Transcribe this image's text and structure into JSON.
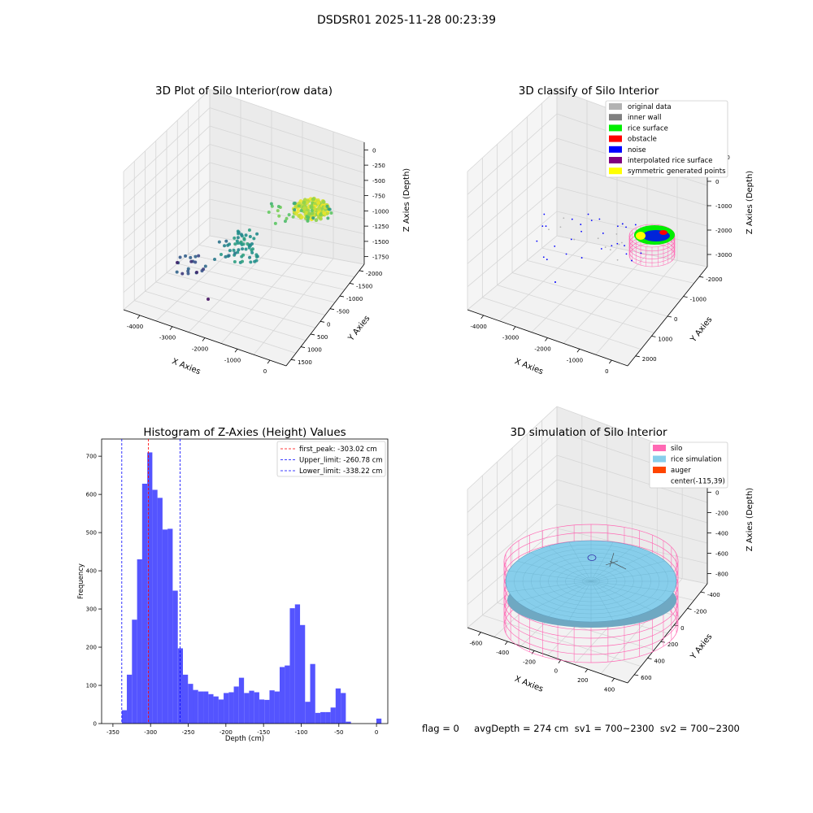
{
  "figure": {
    "suptitle": "DSDSR01 2025-11-28 00:23:39",
    "status_line": "flag = 0     avgDepth = 274 cm  sv1 = 700~2300  sv2 = 700~2300"
  },
  "colors": {
    "original": "#b2b2b2",
    "inner_wall": "#808080",
    "rice_surface": "#00ee00",
    "obstacle": "#ff0000",
    "noise": "#0000ff",
    "interpolated": "#800080",
    "symmetric": "#ffff00",
    "silo": "#ff69b4",
    "rice_sim": "#87ceeb",
    "auger": "#ff4500",
    "hist_bar": "#4b4bff"
  },
  "chart_data": [
    {
      "type": "scatter3d",
      "title": "3D Plot of Silo Interior(row data)",
      "xlabel": "X Axies",
      "ylabel": "Y Axies",
      "zlabel": "Z Axies (Depth)",
      "xticks": [
        "-4000",
        "-3000",
        "-2000",
        "-1000",
        "0"
      ],
      "yticks": [
        "1500",
        "1000",
        "500",
        "0",
        "-500",
        "-1000",
        "-1500",
        "-2000"
      ],
      "zticks": [
        "0",
        "-250",
        "-500",
        "-750",
        "-1000",
        "-1250",
        "-1500",
        "-1750"
      ],
      "colormap": "viridis"
    },
    {
      "type": "scatter3d",
      "title": "3D classify of Silo Interior",
      "xlabel": "X Axies",
      "ylabel": "Y Axies",
      "zlabel": "Z Axies (Depth)",
      "xticks": [
        "-4000",
        "-3000",
        "-2000",
        "-1000",
        "0"
      ],
      "yticks": [
        "2000",
        "1000",
        "0",
        "-1000",
        "-2000"
      ],
      "zticks": [
        "1000",
        "0",
        "-1000",
        "-2000",
        "-3000"
      ],
      "legend": [
        "original data",
        "inner wall",
        "rice surface",
        "obstacle",
        "noise",
        "interpolated rice surface",
        "symmetric generated points"
      ],
      "legend_position": "top-right"
    },
    {
      "type": "bar",
      "title": "Histogram of Z-Axies (Height) Values",
      "xlabel": "Depth (cm)",
      "ylabel": "Frequency",
      "xlim": [
        -365,
        15
      ],
      "ylim": [
        0,
        745
      ],
      "xticks": [
        -350,
        -300,
        -250,
        -200,
        -150,
        -100,
        -50,
        0
      ],
      "yticks": [
        0,
        100,
        200,
        300,
        400,
        500,
        600,
        700
      ],
      "bin_width": 6.76,
      "bin_starts": [
        -338.2,
        -331.5,
        -324.7,
        -317.9,
        -311.2,
        -304.4,
        -297.6,
        -290.9,
        -284.1,
        -277.4,
        -270.6,
        -263.8,
        -257.1,
        -250.3,
        -243.6,
        -236.8,
        -230.0,
        -223.3,
        -216.5,
        -209.8,
        -203.0,
        -196.2,
        -189.5,
        -182.7,
        -175.9,
        -169.2,
        -162.4,
        -155.7,
        -148.9,
        -142.1,
        -135.4,
        -128.6,
        -121.9,
        -115.1,
        -108.3,
        -101.6,
        -94.8,
        -88.1,
        -81.3,
        -74.5,
        -67.8,
        -61.0,
        -54.3,
        -47.5,
        -40.7,
        -34.0,
        -27.2,
        -20.5,
        -13.7,
        -6.9,
        -0.2
      ],
      "values": [
        35,
        128,
        272,
        430,
        628,
        710,
        612,
        591,
        508,
        510,
        348,
        197,
        128,
        104,
        88,
        84,
        84,
        77,
        71,
        63,
        80,
        82,
        97,
        120,
        80,
        86,
        82,
        63,
        62,
        87,
        84,
        148,
        152,
        302,
        312,
        258,
        57,
        156,
        28,
        30,
        30,
        42,
        92,
        80,
        5,
        0,
        0,
        0,
        0,
        0,
        13
      ],
      "vlines": [
        {
          "label": "first_peak: -303.02 cm",
          "x": -303.02,
          "color": "#ff0000"
        },
        {
          "label": "Upper_limit: -260.78 cm",
          "x": -260.78,
          "color": "#0000ff"
        },
        {
          "label": "Lower_limit: -338.22 cm",
          "x": -338.22,
          "color": "#0000ff"
        }
      ],
      "legend_position": "top-right"
    },
    {
      "type": "surface3d",
      "title": "3D simulation of Silo Interior",
      "xlabel": "X Axies",
      "ylabel": "Y Axies",
      "zlabel": "Z Axies (Depth)",
      "xticks": [
        "-600",
        "-400",
        "-200",
        "0",
        "200",
        "400"
      ],
      "yticks": [
        "600",
        "400",
        "200",
        "0",
        "-200",
        "-400"
      ],
      "zticks": [
        "200",
        "0",
        "-200",
        "-400",
        "-600",
        "-800"
      ],
      "legend": [
        "silo",
        "rice simulation",
        "auger",
        "center(-115,39)"
      ],
      "legend_position": "top-right"
    }
  ]
}
